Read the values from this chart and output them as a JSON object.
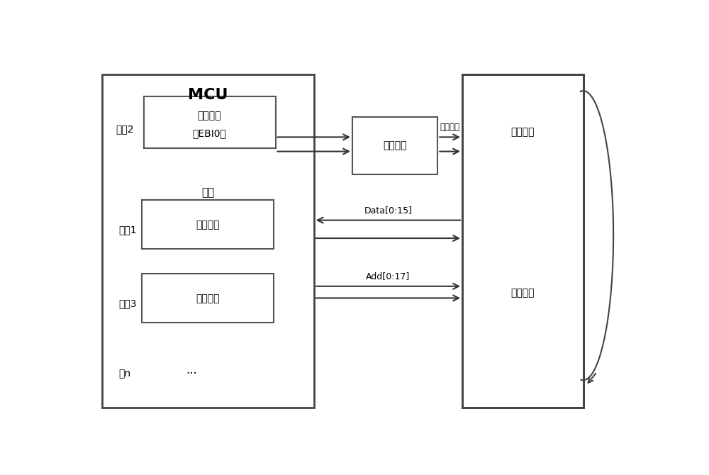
{
  "mcu_label": "MCU",
  "thread2_label": "线牨2",
  "data_copy_line1": "数据拷贝",
  "data_copy_line2": "（EBI0）",
  "suspend_label": "挂起",
  "thread1_label": "线牨1",
  "user_prog_label": "用户程序",
  "thread3_label": "线牨3",
  "diag_prog_label": "诊断程序",
  "threadn_label": "线n",
  "dots_label": "···",
  "ctrl_label": "控制电路",
  "ctrl_signal_label": "控制信号",
  "diag_zone_label": "诊断区域",
  "copy_data_label": "拷贝数据",
  "data_bus_label": "Data[0:15]",
  "addr_bus_label": "Add[0:17]"
}
